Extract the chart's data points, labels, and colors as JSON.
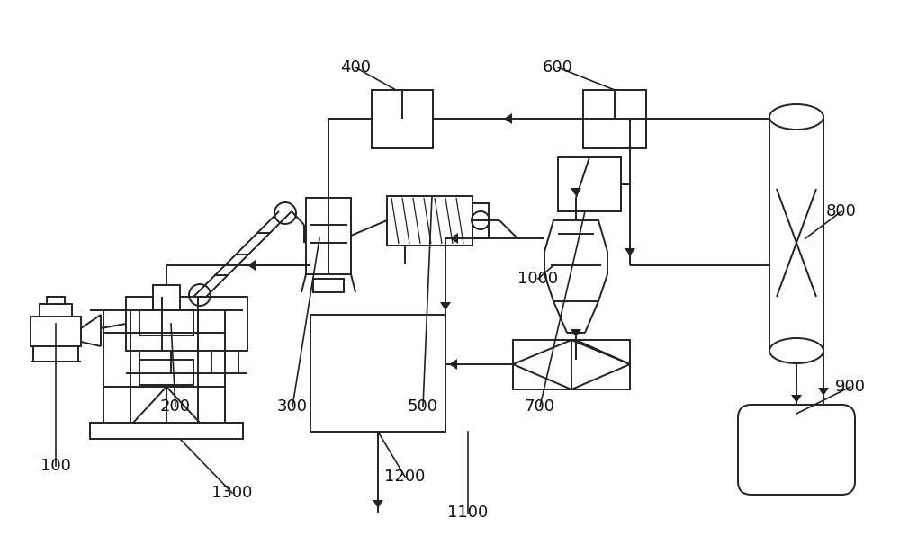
{
  "bg": "#ffffff",
  "lc": "#222222",
  "lw": 1.4,
  "fs": 13,
  "fw": 10.0,
  "fh": 6.06,
  "dpi": 100
}
